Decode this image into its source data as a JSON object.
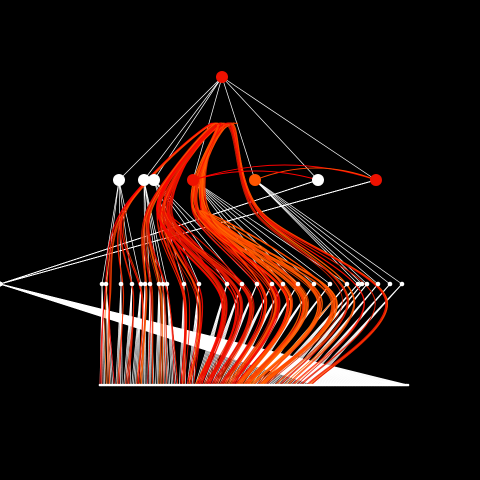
{
  "diagram": {
    "type": "hierarchical-edge-bundling",
    "background": "#000000",
    "tree_edge_color": "#ffffff",
    "levels": 4,
    "level_1": [
      {
        "id": "root",
        "color": "#ee1100"
      }
    ],
    "level_2": [
      {
        "id": "g1",
        "color": "#ffffff",
        "children": 5
      },
      {
        "id": "g2",
        "color": "#ffffff",
        "children": 5
      },
      {
        "id": "g3",
        "color": "#ffffff",
        "children": 5
      },
      {
        "id": "g4",
        "color": "#ee1100",
        "children": 6
      },
      {
        "id": "g5",
        "color": "#ff5500",
        "children": 6
      },
      {
        "id": "g6",
        "color": "#ffffff",
        "children": 6
      },
      {
        "id": "g7",
        "color": "#ee1100",
        "children": 6
      }
    ],
    "leaves_per_level3_node": 5,
    "bundle_colors": [
      "#ff0000",
      "#ee1100",
      "#dd2200",
      "#ff4400",
      "#ff6600"
    ],
    "bundle_edge_count": 120,
    "bundle_tension": 0.85
  }
}
